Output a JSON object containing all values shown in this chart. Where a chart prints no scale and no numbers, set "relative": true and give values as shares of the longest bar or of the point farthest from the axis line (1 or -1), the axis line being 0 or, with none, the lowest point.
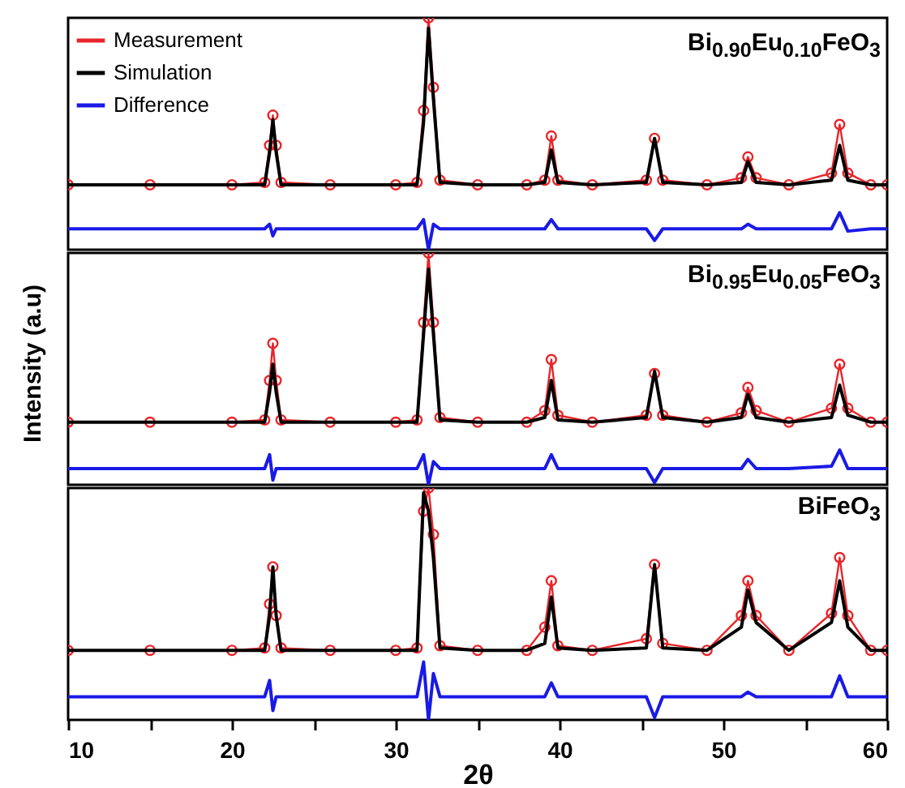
{
  "chart_data": [
    {
      "type": "line",
      "title": "Bi$_{0.90}$Eu$_{0.10}$FeO$_{3}$",
      "relative": true,
      "legend": "top left",
      "xlim": [
        10,
        60
      ],
      "tick_labels": false,
      "x": [
        10,
        15,
        20,
        22,
        22.3,
        22.5,
        22.7,
        23,
        26,
        30,
        31.3,
        31.7,
        32,
        32.3,
        32.7,
        35,
        38,
        39.1,
        39.5,
        39.9,
        42,
        45.3,
        45.8,
        46.3,
        49,
        51.1,
        51.5,
        52,
        54,
        56.6,
        57.1,
        57.6,
        59,
        60
      ],
      "series": [
        {
          "name": "Measurement",
          "color": "#e8262a",
          "marker": "circle",
          "values": [
            0.28,
            0.28,
            0.28,
            0.29,
            0.45,
            0.58,
            0.45,
            0.29,
            0.28,
            0.28,
            0.29,
            0.6,
            1.0,
            0.7,
            0.3,
            0.28,
            0.28,
            0.3,
            0.49,
            0.3,
            0.28,
            0.3,
            0.48,
            0.3,
            0.28,
            0.31,
            0.4,
            0.31,
            0.28,
            0.33,
            0.54,
            0.33,
            0.28,
            0.28
          ]
        },
        {
          "name": "Simulation",
          "color": "#000000",
          "values": [
            0.28,
            0.28,
            0.28,
            0.28,
            0.42,
            0.56,
            0.42,
            0.28,
            0.28,
            0.28,
            0.28,
            0.55,
            0.955,
            0.65,
            0.29,
            0.28,
            0.28,
            0.29,
            0.43,
            0.29,
            0.28,
            0.29,
            0.48,
            0.29,
            0.28,
            0.29,
            0.38,
            0.29,
            0.28,
            0.3,
            0.45,
            0.3,
            0.28,
            0.28
          ]
        },
        {
          "name": "Difference",
          "color": "#1a1ae6",
          "values": [
            0.09,
            0.09,
            0.09,
            0.09,
            0.11,
            0.06,
            0.09,
            0.09,
            0.09,
            0.09,
            0.09,
            0.13,
            0.0,
            0.11,
            0.09,
            0.09,
            0.09,
            0.09,
            0.13,
            0.09,
            0.09,
            0.09,
            0.04,
            0.09,
            0.09,
            0.09,
            0.11,
            0.09,
            0.09,
            0.09,
            0.16,
            0.08,
            0.09,
            0.09
          ]
        }
      ]
    },
    {
      "type": "line",
      "title": "Bi$_{0.95}$Eu$_{0.05}$FeO$_{3}$",
      "ylabel": "Intensity (a.u)",
      "relative": true,
      "xlim": [
        10,
        60
      ],
      "tick_labels": false,
      "x": [
        10,
        15,
        20,
        22,
        22.3,
        22.5,
        22.7,
        23,
        26,
        30,
        31.3,
        31.7,
        32,
        32.3,
        32.7,
        35,
        38,
        39.1,
        39.5,
        39.9,
        42,
        45.3,
        45.8,
        46.3,
        49,
        51.1,
        51.5,
        52,
        54,
        56.6,
        57.1,
        57.6,
        59,
        60
      ],
      "series": [
        {
          "color": "#e8262a",
          "marker": "circle",
          "values": [
            0.27,
            0.27,
            0.27,
            0.28,
            0.45,
            0.61,
            0.45,
            0.28,
            0.27,
            0.27,
            0.28,
            0.7,
            1.0,
            0.7,
            0.29,
            0.27,
            0.27,
            0.32,
            0.54,
            0.3,
            0.27,
            0.3,
            0.48,
            0.3,
            0.27,
            0.31,
            0.42,
            0.32,
            0.27,
            0.33,
            0.52,
            0.33,
            0.27,
            0.27
          ]
        },
        {
          "color": "#000000",
          "values": [
            0.27,
            0.27,
            0.27,
            0.27,
            0.4,
            0.52,
            0.4,
            0.27,
            0.27,
            0.27,
            0.27,
            0.65,
            0.93,
            0.65,
            0.28,
            0.27,
            0.27,
            0.29,
            0.45,
            0.28,
            0.27,
            0.29,
            0.49,
            0.29,
            0.27,
            0.29,
            0.39,
            0.29,
            0.27,
            0.29,
            0.43,
            0.3,
            0.27,
            0.27
          ]
        },
        {
          "color": "#1a1ae6",
          "values": [
            0.07,
            0.07,
            0.07,
            0.07,
            0.13,
            0.02,
            0.07,
            0.07,
            0.07,
            0.07,
            0.07,
            0.13,
            0.0,
            0.1,
            0.07,
            0.07,
            0.07,
            0.07,
            0.13,
            0.07,
            0.07,
            0.07,
            0.01,
            0.07,
            0.07,
            0.07,
            0.11,
            0.07,
            0.07,
            0.08,
            0.15,
            0.07,
            0.07,
            0.07
          ]
        }
      ]
    },
    {
      "type": "line",
      "title": "BiFeO$_{3}$",
      "xlabel": "2θ",
      "relative": true,
      "xlim": [
        10,
        60
      ],
      "tick_labels": "x",
      "xticks": [
        10,
        {
          "value": 15,
          "label": null
        },
        20,
        {
          "value": 25,
          "label": null
        },
        30,
        {
          "value": 35,
          "label": null
        },
        40,
        {
          "value": 45,
          "label": null
        },
        50,
        {
          "value": 55,
          "label": null
        },
        60
      ],
      "x": [
        10,
        15,
        20,
        22,
        22.3,
        22.5,
        22.7,
        23,
        26,
        30,
        31.3,
        31.7,
        32,
        32.3,
        32.7,
        35,
        38,
        39.1,
        39.5,
        39.9,
        42,
        45.3,
        45.8,
        46.3,
        49,
        51.1,
        51.5,
        52,
        54,
        56.6,
        57.1,
        57.6,
        59,
        60
      ],
      "series": [
        {
          "color": "#e8262a",
          "marker": "circle",
          "values": [
            0.3,
            0.3,
            0.3,
            0.31,
            0.5,
            0.66,
            0.45,
            0.31,
            0.3,
            0.3,
            0.31,
            0.9,
            1.0,
            0.8,
            0.32,
            0.3,
            0.3,
            0.4,
            0.6,
            0.32,
            0.3,
            0.35,
            0.67,
            0.33,
            0.3,
            0.45,
            0.6,
            0.45,
            0.3,
            0.46,
            0.7,
            0.45,
            0.3,
            0.3
          ]
        },
        {
          "color": "#000000",
          "values": [
            0.3,
            0.3,
            0.3,
            0.3,
            0.45,
            0.66,
            0.45,
            0.3,
            0.3,
            0.3,
            0.3,
            0.98,
            0.9,
            0.7,
            0.31,
            0.3,
            0.3,
            0.33,
            0.53,
            0.31,
            0.3,
            0.31,
            0.67,
            0.31,
            0.3,
            0.4,
            0.56,
            0.42,
            0.3,
            0.42,
            0.6,
            0.4,
            0.3,
            0.3
          ]
        },
        {
          "color": "#1a1ae6",
          "values": [
            0.1,
            0.1,
            0.1,
            0.1,
            0.17,
            0.04,
            0.1,
            0.1,
            0.1,
            0.1,
            0.1,
            0.25,
            0.0,
            0.2,
            0.1,
            0.1,
            0.1,
            0.1,
            0.16,
            0.1,
            0.1,
            0.1,
            0.01,
            0.1,
            0.1,
            0.1,
            0.12,
            0.1,
            0.1,
            0.1,
            0.19,
            0.1,
            0.1,
            0.1
          ]
        }
      ]
    }
  ]
}
